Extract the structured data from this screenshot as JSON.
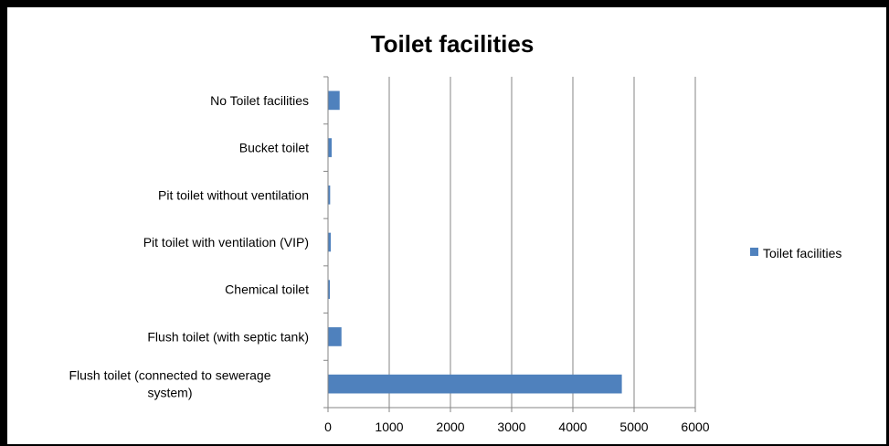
{
  "chart_data": {
    "type": "bar",
    "orientation": "horizontal",
    "title": "Toilet facilities",
    "categories": [
      "Flush toilet (connected to sewerage system)",
      "Flush toilet (with septic tank)",
      "Chemical toilet",
      "Pit toilet with ventilation (VIP)",
      "Pit toilet without ventilation",
      "Bucket toilet",
      "No Toilet facilities"
    ],
    "series": [
      {
        "name": "Toilet facilities",
        "values": [
          4800,
          220,
          30,
          45,
          35,
          60,
          190
        ]
      }
    ],
    "xlim": [
      0,
      6000
    ],
    "xticks": [
      0,
      1000,
      2000,
      3000,
      4000,
      5000,
      6000
    ],
    "grid": true,
    "legend": "right",
    "bar_color": "#4F81BD"
  }
}
